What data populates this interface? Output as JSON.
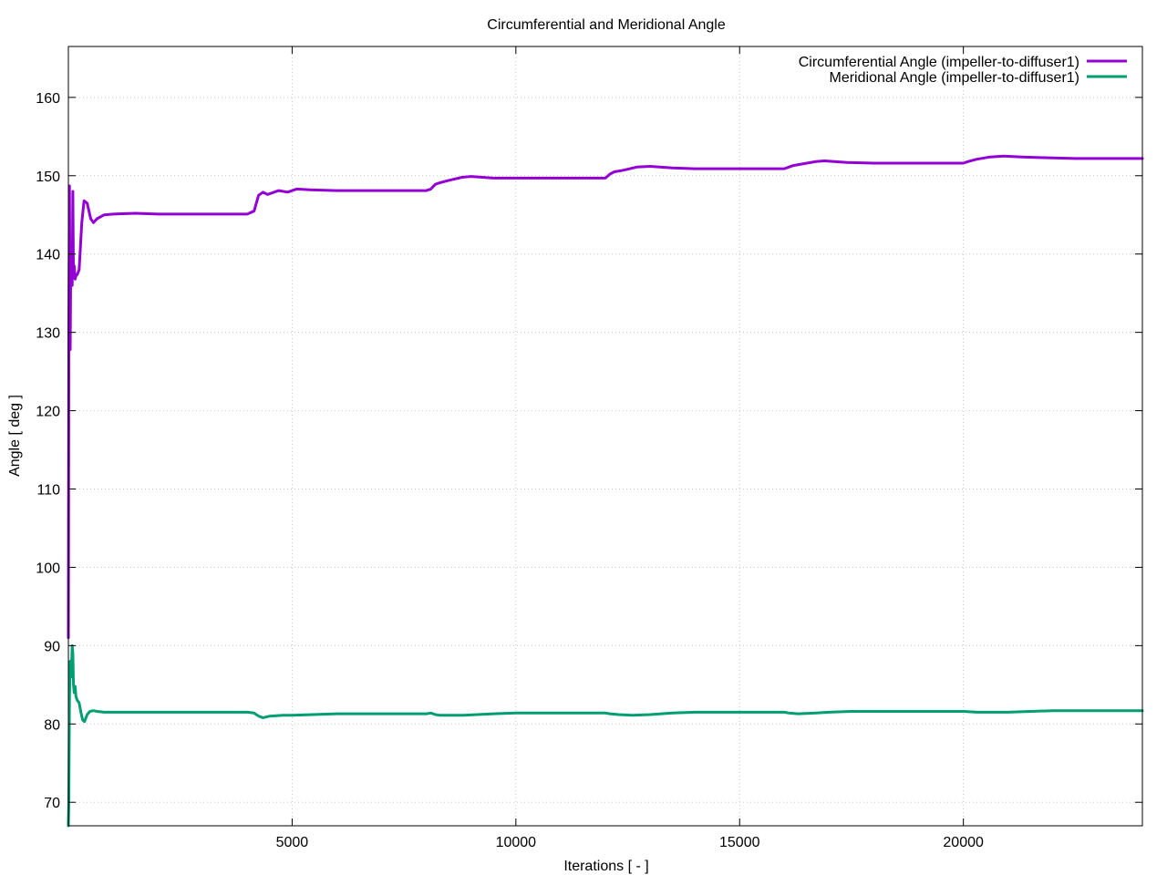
{
  "chart_data": {
    "type": "line",
    "title": "Circumferential and Meridional Angle",
    "xlabel": "Iterations [ - ]",
    "ylabel": "Angle [ deg ]",
    "xlim": [
      0,
      24000
    ],
    "ylim": [
      67,
      166.5
    ],
    "xticks": [
      5000,
      10000,
      15000,
      20000
    ],
    "yticks": [
      70,
      80,
      90,
      100,
      110,
      120,
      130,
      140,
      150,
      160
    ],
    "grid": true,
    "legend_position": "top-right",
    "series": [
      {
        "name": "Circumferential Angle (impeller-to-diffuser1)",
        "color": "#9400d3",
        "x": [
          0,
          10,
          25,
          40,
          55,
          70,
          85,
          100,
          115,
          130,
          150,
          170,
          200,
          240,
          300,
          350,
          420,
          500,
          560,
          640,
          800,
          1000,
          1500,
          2000,
          3000,
          4000,
          4150,
          4250,
          4350,
          4450,
          4550,
          4700,
          4900,
          5100,
          5400,
          6000,
          7000,
          8000,
          8100,
          8200,
          8300,
          8500,
          8800,
          9000,
          9500,
          10000,
          11000,
          12000,
          12100,
          12200,
          12400,
          12700,
          13000,
          13500,
          14000,
          15000,
          16000,
          16100,
          16200,
          16400,
          16700,
          16900,
          17400,
          18000,
          19000,
          20000,
          20100,
          20300,
          20600,
          20900,
          21300,
          21800,
          22500,
          23000,
          24000
        ],
        "values": [
          91,
          130,
          148.7,
          127.8,
          140,
          141,
          136,
          148,
          137,
          138.5,
          136.8,
          137.2,
          137.4,
          138,
          144,
          146.8,
          146.5,
          144.5,
          144,
          144.5,
          145,
          145.1,
          145.2,
          145.1,
          145.1,
          145.1,
          145.5,
          147.5,
          147.9,
          147.6,
          147.8,
          148.1,
          147.9,
          148.3,
          148.2,
          148.1,
          148.1,
          148.1,
          148.3,
          148.9,
          149.1,
          149.4,
          149.8,
          149.9,
          149.7,
          149.7,
          149.7,
          149.7,
          150.2,
          150.5,
          150.7,
          151.1,
          151.2,
          151.0,
          150.9,
          150.9,
          150.9,
          151.1,
          151.3,
          151.5,
          151.8,
          151.9,
          151.7,
          151.6,
          151.6,
          151.6,
          151.8,
          152.1,
          152.4,
          152.5,
          152.4,
          152.3,
          152.2,
          152.2,
          152.2
        ]
      },
      {
        "name": "Meridional Angle (impeller-to-diffuser1)",
        "color": "#009e73",
        "x": [
          0,
          10,
          25,
          40,
          55,
          70,
          85,
          100,
          115,
          130,
          150,
          170,
          200,
          240,
          280,
          320,
          360,
          420,
          480,
          560,
          640,
          800,
          1000,
          1500,
          2000,
          3000,
          4000,
          4150,
          4250,
          4350,
          4500,
          4800,
          5000,
          6000,
          7000,
          8000,
          8100,
          8200,
          8300,
          8500,
          8800,
          9500,
          10000,
          11000,
          12000,
          12100,
          12300,
          12600,
          13000,
          13500,
          14000,
          15000,
          16000,
          16100,
          16300,
          16700,
          17000,
          17500,
          18000,
          19000,
          20000,
          20300,
          20700,
          21000,
          21500,
          22000,
          23000,
          24000
        ],
        "values": [
          67,
          70,
          83,
          88,
          86,
          87,
          90,
          89,
          85,
          84,
          84.8,
          83.5,
          83,
          82.7,
          81.5,
          80.5,
          80.3,
          81.2,
          81.6,
          81.7,
          81.6,
          81.5,
          81.5,
          81.5,
          81.5,
          81.5,
          81.5,
          81.4,
          81.0,
          80.8,
          81.0,
          81.1,
          81.1,
          81.3,
          81.3,
          81.3,
          81.4,
          81.2,
          81.1,
          81.1,
          81.1,
          81.3,
          81.4,
          81.4,
          81.4,
          81.3,
          81.2,
          81.1,
          81.2,
          81.4,
          81.5,
          81.5,
          81.5,
          81.4,
          81.3,
          81.4,
          81.5,
          81.6,
          81.6,
          81.6,
          81.6,
          81.5,
          81.5,
          81.5,
          81.6,
          81.7,
          81.7,
          81.7
        ]
      }
    ]
  }
}
